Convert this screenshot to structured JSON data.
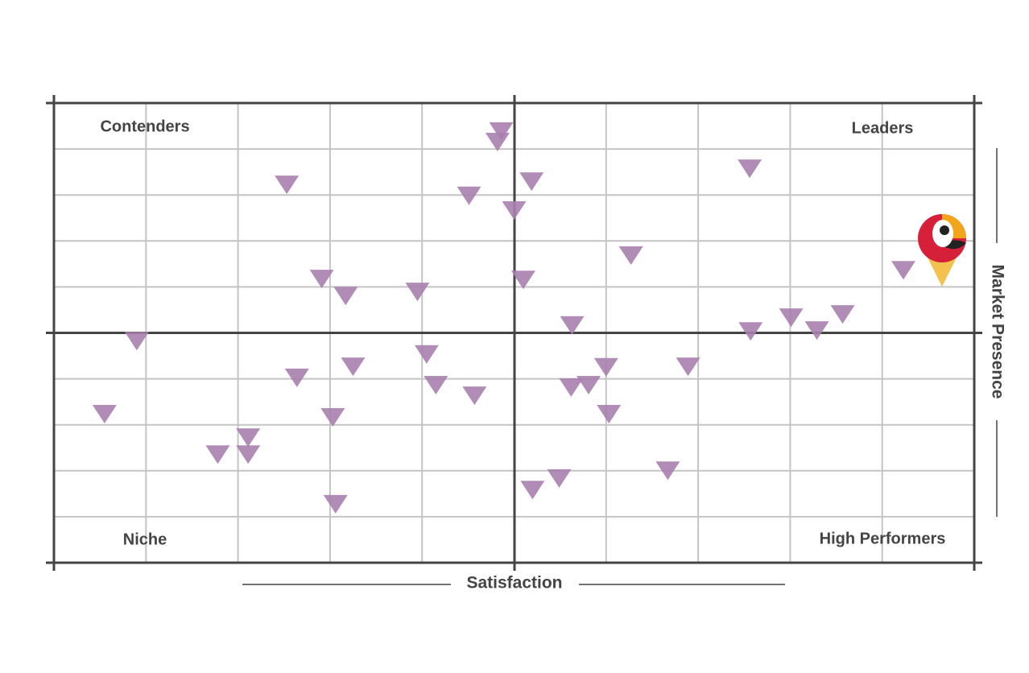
{
  "chart_data": {
    "type": "scatter",
    "x_label": "Satisfaction",
    "y_label": "Market Presence",
    "quadrants": {
      "top_left": "Contenders",
      "top_right": "Leaders",
      "bottom_left": "Niche",
      "bottom_right": "High Performers"
    },
    "xlim": [
      0,
      10
    ],
    "ylim": [
      0,
      10
    ],
    "xticks": [
      0,
      1,
      2,
      3,
      4,
      5,
      6,
      7,
      8,
      9,
      10
    ],
    "yticks": [
      0,
      1,
      2,
      3,
      4,
      5,
      6,
      7,
      8,
      9,
      10
    ],
    "grid": true,
    "color": "#a77fae",
    "x": [
      4.86,
      4.82,
      2.53,
      5.19,
      4.51,
      5.0,
      7.56,
      6.27,
      9.23,
      2.91,
      3.17,
      3.95,
      5.1,
      5.63,
      7.57,
      8.01,
      8.29,
      8.57,
      0.9,
      4.05,
      3.25,
      2.64,
      4.15,
      4.57,
      6.0,
      6.89,
      5.62,
      5.81,
      6.03,
      0.55,
      3.03,
      2.11,
      1.78,
      2.11,
      6.67,
      5.49,
      5.2,
      3.06
    ],
    "y": [
      9.39,
      9.16,
      8.23,
      8.3,
      7.99,
      7.67,
      8.58,
      6.69,
      6.37,
      6.18,
      5.81,
      5.9,
      6.16,
      5.17,
      5.04,
      5.34,
      5.06,
      5.41,
      4.83,
      4.54,
      4.27,
      4.03,
      3.87,
      3.64,
      4.26,
      4.27,
      3.82,
      3.87,
      3.24,
      3.24,
      3.17,
      2.73,
      2.36,
      2.36,
      2.01,
      1.84,
      1.59,
      1.28
    ]
  }
}
